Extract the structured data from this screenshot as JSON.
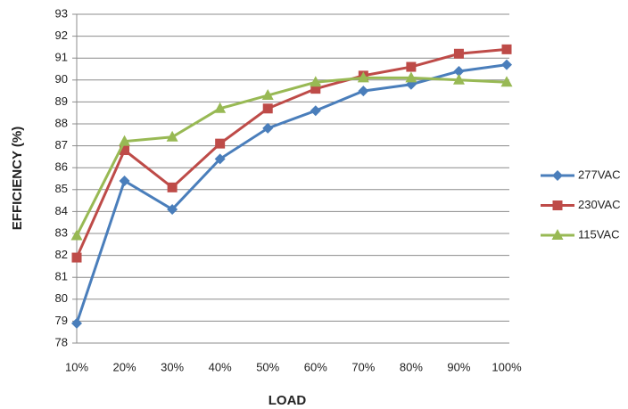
{
  "chart_data": {
    "type": "line",
    "x_label": "LOAD",
    "y_label": "EFFICIENCY (%)",
    "categories": [
      "10%",
      "20%",
      "30%",
      "40%",
      "50%",
      "60%",
      "70%",
      "80%",
      "90%",
      "100%"
    ],
    "series": [
      {
        "name": "277VAC",
        "color": "#4a7ebb",
        "marker": "diamond",
        "values": [
          78.9,
          85.4,
          84.1,
          86.4,
          87.8,
          88.6,
          89.5,
          89.8,
          90.4,
          90.7
        ]
      },
      {
        "name": "230VAC",
        "color": "#be4b48",
        "marker": "square",
        "values": [
          81.9,
          86.8,
          85.1,
          87.1,
          88.7,
          89.6,
          90.2,
          90.6,
          91.2,
          91.4
        ]
      },
      {
        "name": "115VAC",
        "color": "#98b954",
        "marker": "triangle",
        "values": [
          82.9,
          87.2,
          87.4,
          88.7,
          89.3,
          89.9,
          90.1,
          90.1,
          90.0,
          89.9
        ]
      }
    ],
    "ylim": [
      78,
      93
    ],
    "yticks": [
      78,
      79,
      80,
      81,
      82,
      83,
      84,
      85,
      86,
      87,
      88,
      89,
      90,
      91,
      92,
      93
    ],
    "grid": true,
    "legend": "right"
  }
}
